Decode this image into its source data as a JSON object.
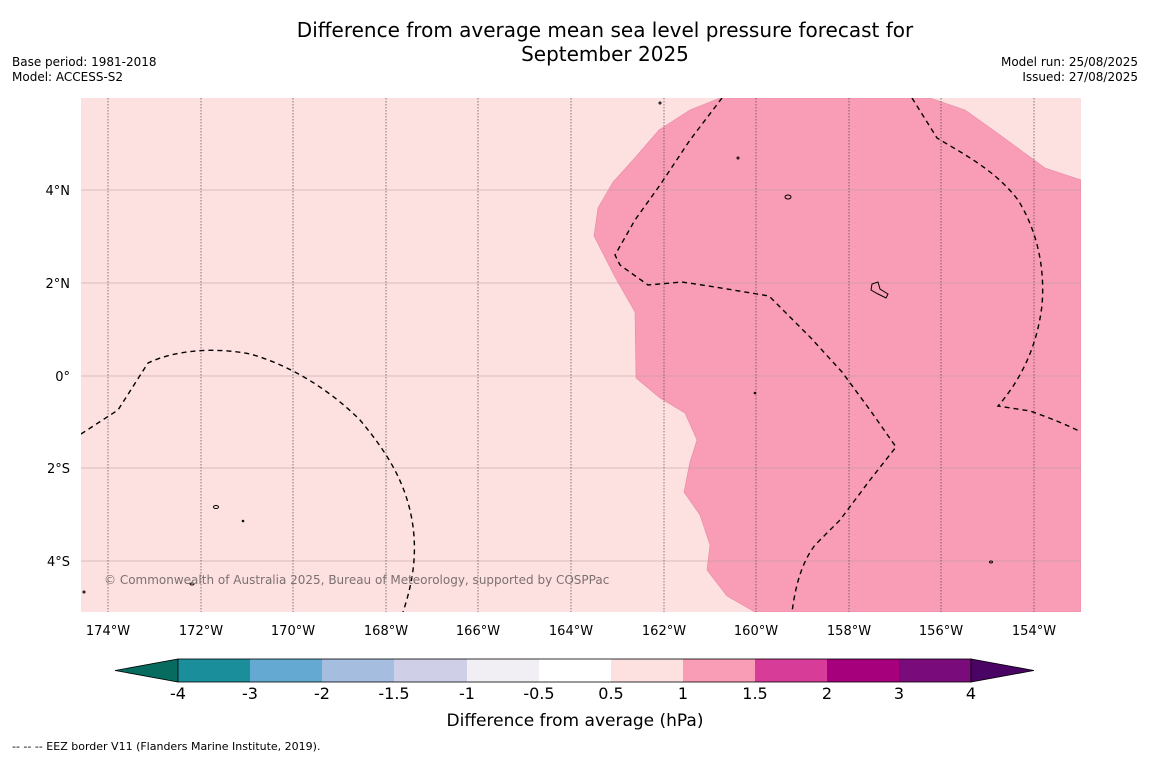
{
  "title_line1": "Difference from average mean sea level pressure forecast for",
  "title_line2": "September 2025",
  "base_period": "Base period: 1981-2018",
  "model": "Model: ACCESS-S2",
  "model_run": "Model run: 25/08/2025",
  "issued": "Issued: 27/08/2025",
  "copyright": "© Commonwealth of Australia 2025, Bureau of Meteorology, supported by COSPPac",
  "footnote": "--  --  -- EEZ border V11 (Flanders Marine Institute, 2019).",
  "colorbar": {
    "title": "Difference from average (hPa)",
    "labels": [
      "-4",
      "-3",
      "-2",
      "-1.5",
      "-1",
      "-0.5",
      "0.5",
      "1",
      "1.5",
      "2",
      "3",
      "4"
    ],
    "colors": [
      "#076b5f",
      "#1a8f9b",
      "#64a9d1",
      "#a5bee0",
      "#cfd0e8",
      "#f1eff3",
      "#ffffff",
      "#fde0e0",
      "#f99db6",
      "#d83c99",
      "#a7007c",
      "#7a0b7a",
      "#4a0464"
    ]
  },
  "map": {
    "lat_labels": [
      "4°N",
      "2°N",
      "0°",
      "2°S",
      "4°S"
    ],
    "lon_labels": [
      "174°W",
      "172°W",
      "170°W",
      "168°W",
      "166°W",
      "164°W",
      "162°W",
      "160°W",
      "158°W",
      "156°W",
      "154°W"
    ],
    "background_color": "#fde0e0",
    "anomaly_region_color": "#f99db6"
  }
}
